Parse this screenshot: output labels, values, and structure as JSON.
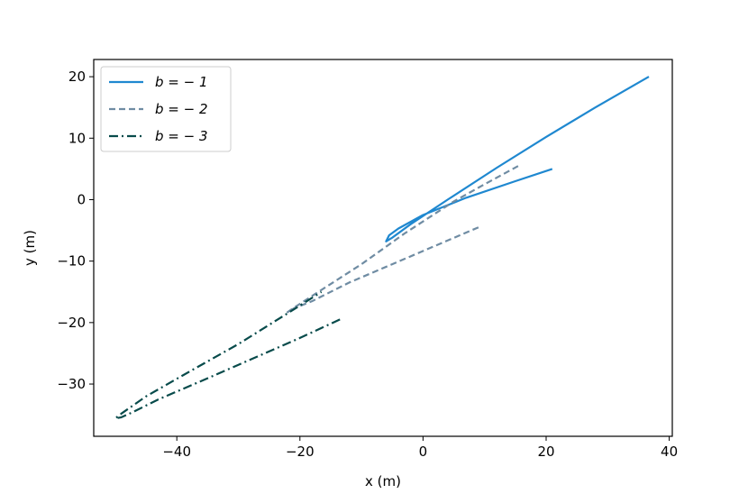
{
  "chart_data": {
    "type": "line",
    "title": "",
    "xlabel": "x (m)",
    "ylabel": "y (m)",
    "xlim": [
      -53.5,
      40.5
    ],
    "ylim": [
      -38.5,
      22.8
    ],
    "xticks": [
      -40,
      -20,
      0,
      20,
      40
    ],
    "yticks": [
      -30,
      -20,
      -10,
      0,
      10,
      20
    ],
    "xtick_labels": [
      "−40",
      "−20",
      "0",
      "20",
      "40"
    ],
    "ytick_labels": [
      "−30",
      "−20",
      "−10",
      "0",
      "10",
      "20"
    ],
    "grid": false,
    "legend": {
      "position": "upper-left",
      "entries": [
        "b = − 1",
        "b = − 2",
        "b = − 3"
      ]
    },
    "series": [
      {
        "name": "b = − 1",
        "color": "#1f88d0",
        "dash": "solid",
        "x": [
          21.0,
          15.0,
          7.0,
          0.0,
          -4.0,
          -5.5,
          -6.0,
          -5.0,
          -2.0,
          4.0,
          12.0,
          20.0,
          28.0,
          36.7
        ],
        "y": [
          5.0,
          3.0,
          0.3,
          -2.5,
          -4.7,
          -5.8,
          -6.8,
          -6.2,
          -4.0,
          0.0,
          5.2,
          10.2,
          15.0,
          20.0
        ]
      },
      {
        "name": "b = − 2",
        "color": "#6f8ca3",
        "dash": "dashed",
        "x": [
          9.0,
          2.0,
          -5.0,
          -12.0,
          -18.0,
          -21.0,
          -22.0,
          -21.0,
          -17.0,
          -10.0,
          -3.0,
          5.0,
          10.0,
          15.5
        ],
        "y": [
          -4.5,
          -7.5,
          -10.5,
          -13.5,
          -16.5,
          -17.7,
          -18.3,
          -17.6,
          -15.0,
          -10.5,
          -5.5,
          -0.3,
          2.5,
          5.5
        ]
      },
      {
        "name": "b = − 3",
        "color": "#084b4b",
        "dash": "dashdot",
        "x": [
          -13.5,
          -20.0,
          -28.0,
          -36.0,
          -43.0,
          -47.0,
          -49.0,
          -50.0,
          -49.0,
          -45.0,
          -38.0,
          -30.0,
          -22.0,
          -16.5
        ],
        "y": [
          -19.5,
          -22.5,
          -26.0,
          -29.5,
          -32.5,
          -34.5,
          -35.4,
          -35.6,
          -34.8,
          -32.0,
          -28.0,
          -23.5,
          -18.5,
          -15.0
        ]
      }
    ]
  }
}
